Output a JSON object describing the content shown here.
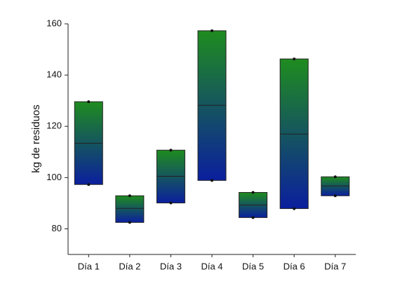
{
  "chart_data": {
    "type": "box",
    "y_label": "kg de residuos",
    "categories": [
      "Día 1",
      "Día 2",
      "Día 3",
      "Día 4",
      "Día 5",
      "Día 6",
      "Día 7"
    ],
    "max": [
      129.6,
      92.9,
      110.7,
      157.3,
      94.2,
      146.3,
      100.3
    ],
    "median": [
      113.4,
      88,
      100.5,
      128.2,
      89.3,
      117,
      96.7
    ],
    "min": [
      97.3,
      82.5,
      90.1,
      98.9,
      84.4,
      87.9,
      92.9
    ],
    "color_top": "#1f8c1f",
    "color_bottom": "#0b1f9e",
    "ylim": [
      70,
      160
    ],
    "yticks": [
      80,
      100,
      120,
      140,
      160
    ]
  }
}
